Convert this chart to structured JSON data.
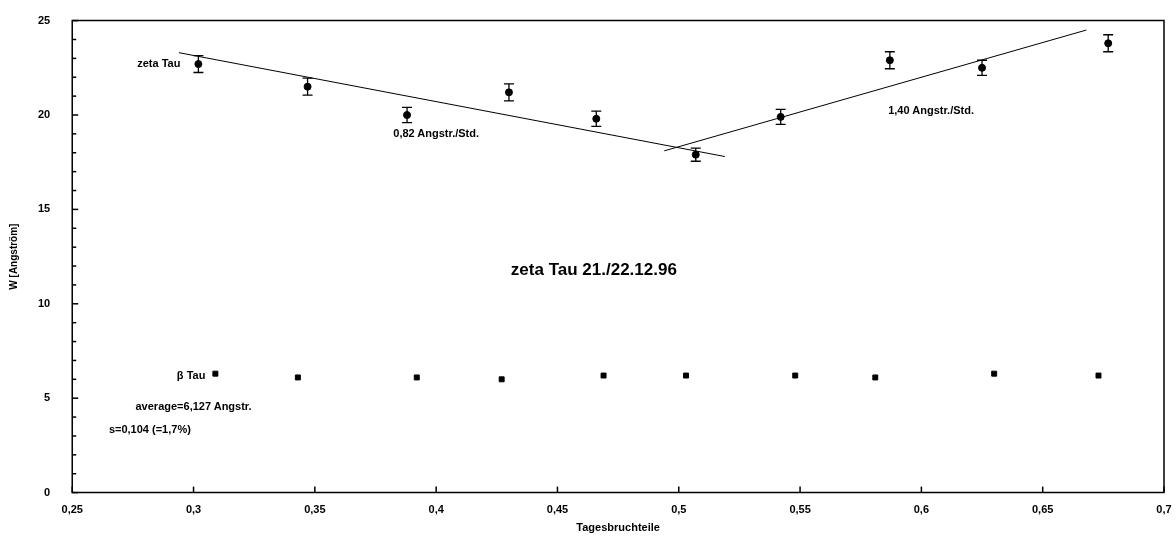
{
  "chart_data": {
    "type": "scatter",
    "title": "zeta Tau 21./22.12.96",
    "xlabel": "Tagesbruchteile",
    "ylabel": "W [Angström]",
    "annotations": [
      "0,82 Angstr./Std.",
      "1,40 Angstr./Std.",
      "average=6,127 Angstr.",
      "s=0,104 (=1,7%)"
    ],
    "xlim": [
      0.25,
      0.7
    ],
    "ylim": [
      0,
      25
    ],
    "xticks": [
      {
        "value": 0.25,
        "label": "0,25"
      },
      {
        "value": 0.3,
        "label": "0,3"
      },
      {
        "value": 0.35,
        "label": "0,35"
      },
      {
        "value": 0.4,
        "label": "0,4"
      },
      {
        "value": 0.45,
        "label": "0,45"
      },
      {
        "value": 0.5,
        "label": "0,5"
      },
      {
        "value": 0.55,
        "label": "0,55"
      },
      {
        "value": 0.6,
        "label": "0,6"
      },
      {
        "value": 0.65,
        "label": "0,65"
      },
      {
        "value": 0.7,
        "label": "0,7"
      }
    ],
    "yticks": [
      0,
      {
        "value": 1,
        "label": null
      },
      {
        "value": 2,
        "label": null
      },
      {
        "value": 3,
        "label": null
      },
      {
        "value": 4,
        "label": null
      },
      5,
      {
        "value": 6,
        "label": null
      },
      {
        "value": 7,
        "label": null
      },
      {
        "value": 8,
        "label": null
      },
      {
        "value": 9,
        "label": null
      },
      10,
      {
        "value": 11,
        "label": null
      },
      {
        "value": 12,
        "label": null
      },
      {
        "value": 13,
        "label": null
      },
      {
        "value": 14,
        "label": null
      },
      15,
      {
        "value": 16,
        "label": null
      },
      {
        "value": 17,
        "label": null
      },
      {
        "value": 18,
        "label": null
      },
      {
        "value": 19,
        "label": null
      },
      20,
      {
        "value": 21,
        "label": null
      },
      {
        "value": 22,
        "label": null
      },
      {
        "value": 23,
        "label": null
      },
      {
        "value": 24,
        "label": null
      },
      25
    ],
    "series": [
      {
        "name": "zeta Tau",
        "marker": "circle",
        "color": "#000000",
        "x": [
          0.302,
          0.347,
          0.388,
          0.43,
          0.466,
          0.507,
          0.542,
          0.587,
          0.625,
          0.677
        ],
        "values": [
          22.7,
          21.5,
          20.0,
          21.2,
          19.8,
          17.9,
          19.9,
          22.9,
          22.5,
          23.8
        ],
        "errors": [
          0.45,
          0.45,
          0.4,
          0.45,
          0.4,
          0.35,
          0.4,
          0.45,
          0.4,
          0.45
        ]
      },
      {
        "name": "β Tau",
        "marker": "square",
        "color": "#000000",
        "x": [
          0.309,
          0.343,
          0.392,
          0.427,
          0.469,
          0.503,
          0.548,
          0.581,
          0.63,
          0.673
        ],
        "values": [
          6.3,
          6.1,
          6.1,
          6.0,
          6.2,
          6.2,
          6.2,
          6.1,
          6.3,
          6.2
        ]
      },
      {
        "type": "line",
        "color": "#000000",
        "x": [
          0.294,
          0.519
        ],
        "values": [
          23.3,
          17.8
        ]
      },
      {
        "type": "line",
        "color": "#000000",
        "x": [
          0.494,
          0.668
        ],
        "values": [
          18.1,
          24.5
        ]
      }
    ]
  }
}
